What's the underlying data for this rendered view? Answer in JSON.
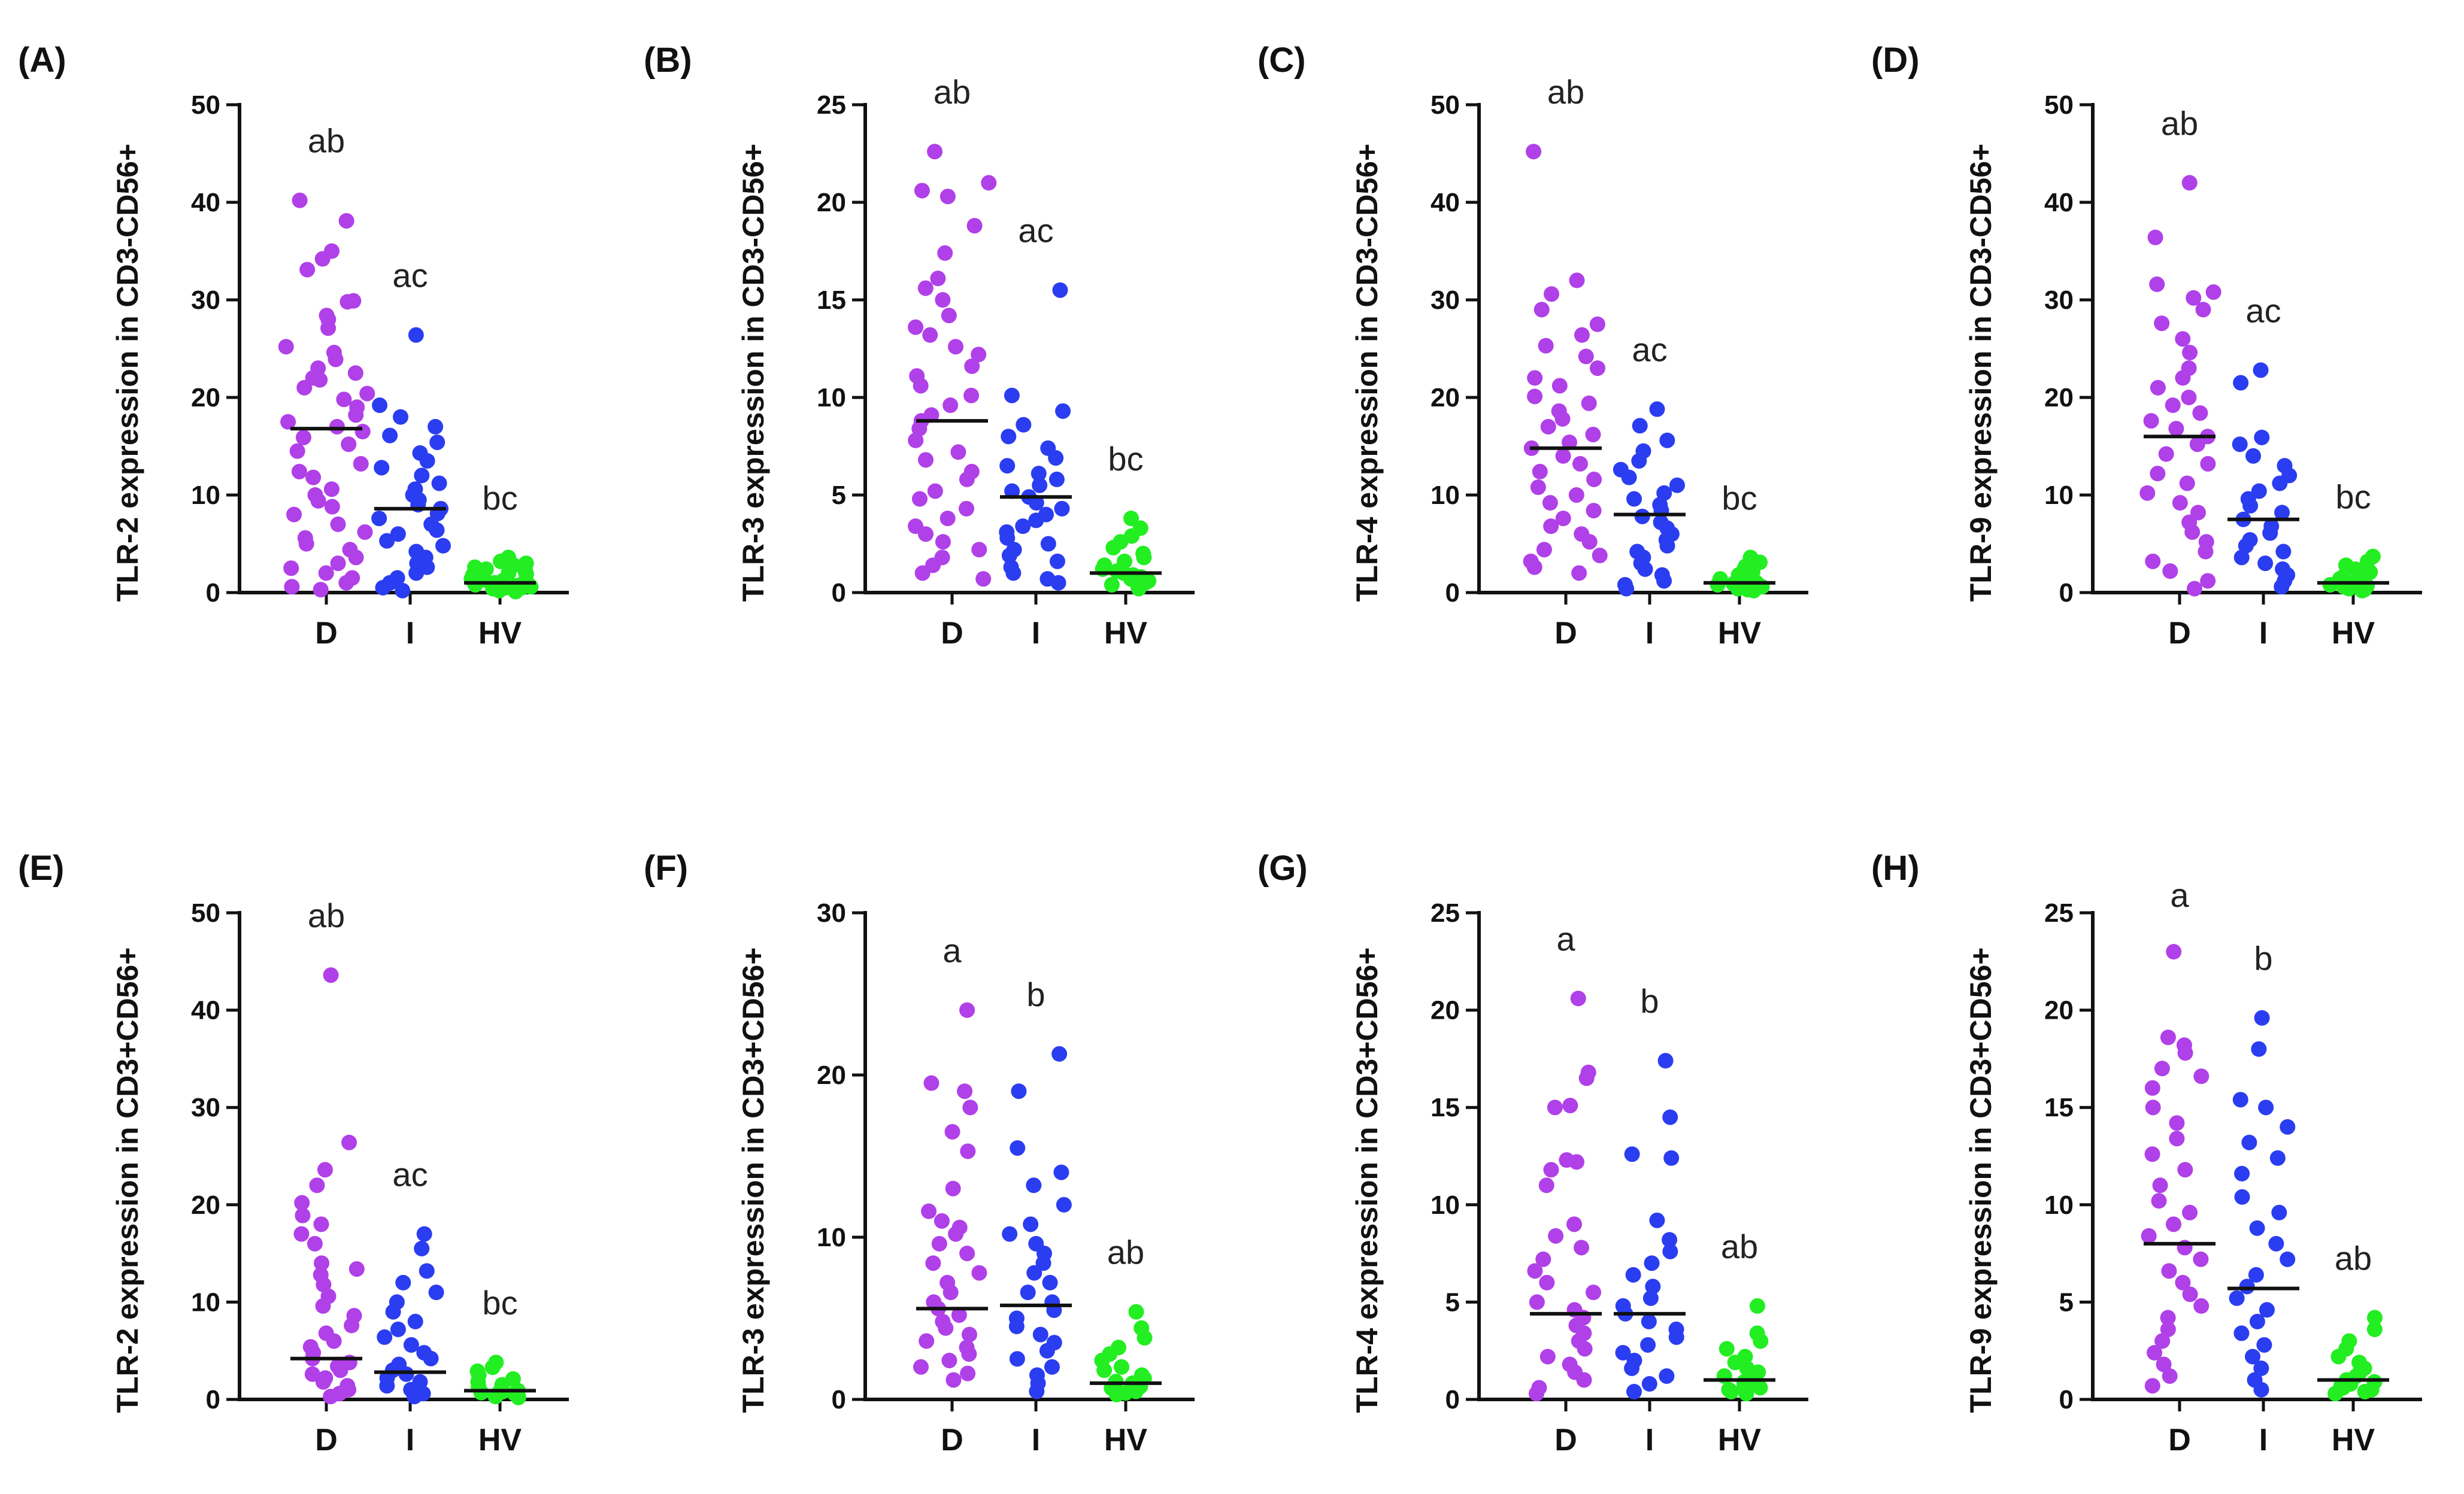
{
  "chart_data": [
    {
      "type": "scatter",
      "panel_label": "(A)",
      "ylabel": "TLR-2 expression in CD3-CD56+",
      "categories": [
        "D",
        "I",
        "HV"
      ],
      "ylim": [
        0,
        50
      ],
      "yticks": [
        0,
        10,
        20,
        30,
        40,
        50
      ],
      "significance": [
        "ab",
        "ac",
        "bc"
      ],
      "medians": [
        16.8,
        8.6,
        1.0
      ],
      "series": [
        {
          "name": "D",
          "color": "#b040e8",
          "values": [
            40.2,
            38.1,
            35.0,
            34.2,
            33.1,
            29.9,
            29.8,
            28.4,
            28.0,
            27.1,
            25.2,
            24.6,
            23.9,
            23.0,
            22.5,
            22.0,
            21.8,
            21.0,
            20.4,
            19.8,
            19.0,
            18.2,
            17.5,
            17.0,
            16.5,
            15.9,
            15.2,
            14.5,
            13.2,
            12.4,
            11.8,
            10.6,
            10.0,
            9.4,
            8.8,
            8.0,
            7.0,
            6.2,
            5.6,
            5.0,
            4.4,
            3.6,
            3.0,
            2.5,
            2.0,
            1.5,
            1.0,
            0.6,
            0.3
          ]
        },
        {
          "name": "I",
          "color": "#2b3df0",
          "values": [
            26.4,
            19.2,
            18.0,
            17.0,
            16.1,
            15.4,
            14.3,
            13.5,
            12.8,
            12.0,
            11.2,
            10.6,
            10.0,
            9.5,
            9.0,
            8.6,
            8.1,
            7.6,
            7.0,
            6.4,
            6.0,
            5.3,
            4.8,
            4.2,
            3.6,
            3.0,
            2.6,
            2.0,
            1.5,
            1.0,
            0.5,
            0.2
          ]
        },
        {
          "name": "HV",
          "color": "#22ee22",
          "values": [
            3.6,
            3.2,
            3.0,
            2.8,
            2.6,
            2.4,
            2.2,
            2.0,
            1.9,
            1.8,
            1.6,
            1.5,
            1.4,
            1.3,
            1.2,
            1.1,
            1.0,
            1.0,
            0.9,
            0.8,
            0.8,
            0.7,
            0.6,
            0.6,
            0.5,
            0.5,
            0.4,
            0.3,
            0.2,
            0.1
          ]
        }
      ]
    },
    {
      "type": "scatter",
      "panel_label": "(B)",
      "ylabel": "TLR-3 expression in CD3-CD56+",
      "categories": [
        "D",
        "I",
        "HV"
      ],
      "ylim": [
        0,
        25
      ],
      "yticks": [
        0,
        5,
        10,
        15,
        20,
        25
      ],
      "significance": [
        "ab",
        "ac",
        "bc"
      ],
      "medians": [
        8.8,
        4.9,
        1.0
      ],
      "series": [
        {
          "name": "D",
          "color": "#b040e8",
          "values": [
            22.6,
            21.0,
            20.6,
            20.3,
            18.8,
            17.4,
            16.1,
            15.6,
            15.0,
            14.2,
            13.6,
            13.2,
            12.6,
            12.2,
            11.6,
            11.1,
            10.6,
            10.1,
            9.6,
            9.1,
            8.8,
            8.4,
            7.8,
            7.2,
            6.8,
            6.2,
            5.8,
            5.2,
            4.8,
            4.3,
            3.8,
            3.4,
            3.0,
            2.6,
            2.2,
            1.8,
            1.4,
            1.0,
            0.7
          ]
        },
        {
          "name": "I",
          "color": "#2b3df0",
          "values": [
            15.5,
            10.1,
            9.3,
            8.6,
            8.0,
            7.4,
            6.9,
            6.5,
            6.1,
            5.8,
            5.5,
            5.2,
            4.9,
            4.6,
            4.3,
            4.0,
            3.7,
            3.4,
            3.1,
            2.8,
            2.5,
            2.2,
            1.9,
            1.6,
            1.3,
            1.0,
            0.7,
            0.5
          ]
        },
        {
          "name": "HV",
          "color": "#22ee22",
          "values": [
            3.8,
            3.3,
            2.9,
            2.6,
            2.3,
            2.0,
            1.8,
            1.6,
            1.4,
            1.2,
            1.1,
            1.0,
            0.9,
            0.8,
            0.7,
            0.6,
            0.5,
            0.4,
            0.3,
            0.2
          ]
        }
      ]
    },
    {
      "type": "scatter",
      "panel_label": "(C)",
      "ylabel": "TLR-4 expression in CD3-CD56+",
      "categories": [
        "D",
        "I",
        "HV"
      ],
      "ylim": [
        0,
        50
      ],
      "yticks": [
        0,
        10,
        20,
        30,
        40,
        50
      ],
      "significance": [
        "ab",
        "ac",
        "bc"
      ],
      "medians": [
        14.8,
        8.0,
        1.0
      ],
      "series": [
        {
          "name": "D",
          "color": "#b040e8",
          "values": [
            45.2,
            32.0,
            30.6,
            29.0,
            27.5,
            26.4,
            25.3,
            24.2,
            23.0,
            22.0,
            21.2,
            20.1,
            19.4,
            18.6,
            17.8,
            17.0,
            16.2,
            15.4,
            14.8,
            14.0,
            13.2,
            12.4,
            11.6,
            10.8,
            10.0,
            9.2,
            8.4,
            7.6,
            6.8,
            6.0,
            5.2,
            4.4,
            3.8,
            3.2,
            2.6,
            2.0
          ]
        },
        {
          "name": "I",
          "color": "#2b3df0",
          "values": [
            18.8,
            17.1,
            15.6,
            14.5,
            13.5,
            12.6,
            11.8,
            11.0,
            10.2,
            9.6,
            9.0,
            8.4,
            7.8,
            7.2,
            6.6,
            6.0,
            5.4,
            4.8,
            4.2,
            3.6,
            3.0,
            2.4,
            1.8,
            1.2,
            0.8,
            0.4
          ]
        },
        {
          "name": "HV",
          "color": "#22ee22",
          "values": [
            3.6,
            3.1,
            2.7,
            2.4,
            2.1,
            1.8,
            1.6,
            1.4,
            1.2,
            1.0,
            0.9,
            0.8,
            0.7,
            0.6,
            0.5,
            0.4,
            0.3,
            0.2
          ]
        }
      ]
    },
    {
      "type": "scatter",
      "panel_label": "(D)",
      "ylabel": "TLR-9 expression in CD3-CD56+",
      "categories": [
        "D",
        "I",
        "HV"
      ],
      "ylim": [
        0,
        50
      ],
      "yticks": [
        0,
        10,
        20,
        30,
        40,
        50
      ],
      "significance": [
        "ab",
        "ac",
        "bc"
      ],
      "medians": [
        16.0,
        7.5,
        1.0
      ],
      "series": [
        {
          "name": "D",
          "color": "#b040e8",
          "values": [
            42.0,
            36.4,
            31.6,
            30.8,
            30.2,
            29.0,
            27.6,
            26.0,
            24.6,
            23.0,
            22.0,
            21.0,
            20.0,
            19.2,
            18.4,
            17.6,
            16.8,
            16.0,
            15.2,
            14.2,
            13.2,
            12.2,
            11.2,
            10.2,
            9.2,
            8.2,
            7.2,
            6.2,
            5.2,
            4.2,
            3.2,
            2.2,
            1.2,
            0.4
          ]
        },
        {
          "name": "I",
          "color": "#2b3df0",
          "values": [
            22.8,
            21.5,
            15.9,
            15.2,
            14.0,
            13.0,
            12.0,
            11.2,
            10.4,
            9.6,
            8.9,
            8.2,
            7.5,
            6.8,
            6.1,
            5.4,
            4.8,
            4.2,
            3.6,
            3.0,
            2.4,
            1.8,
            1.2,
            0.6
          ]
        },
        {
          "name": "HV",
          "color": "#22ee22",
          "values": [
            3.7,
            3.2,
            2.8,
            2.4,
            2.1,
            1.8,
            1.6,
            1.4,
            1.2,
            1.0,
            0.9,
            0.8,
            0.7,
            0.6,
            0.5,
            0.4,
            0.3,
            0.2
          ]
        }
      ]
    },
    {
      "type": "scatter",
      "panel_label": "(E)",
      "ylabel": "TLR-2 expression in CD3+CD56+",
      "categories": [
        "D",
        "I",
        "HV"
      ],
      "ylim": [
        0,
        50
      ],
      "yticks": [
        0,
        10,
        20,
        30,
        40,
        50
      ],
      "significance": [
        "ab",
        "ac",
        "bc"
      ],
      "medians": [
        4.2,
        2.8,
        0.9
      ],
      "series": [
        {
          "name": "D",
          "color": "#b040e8",
          "values": [
            43.6,
            26.4,
            23.6,
            22.0,
            20.2,
            18.9,
            18.0,
            17.0,
            16.0,
            14.0,
            13.4,
            12.8,
            11.8,
            10.6,
            9.6,
            8.6,
            7.6,
            6.8,
            6.0,
            5.4,
            4.8,
            4.2,
            3.8,
            3.4,
            3.0,
            2.6,
            2.2,
            1.8,
            1.4,
            1.0,
            0.6,
            0.3
          ]
        },
        {
          "name": "I",
          "color": "#2b3df0",
          "values": [
            17.0,
            15.5,
            13.2,
            12.0,
            11.0,
            10.0,
            9.0,
            8.0,
            7.2,
            6.4,
            5.6,
            4.8,
            4.2,
            3.6,
            3.0,
            2.6,
            2.2,
            1.8,
            1.4,
            1.0,
            0.6,
            0.3
          ]
        },
        {
          "name": "HV",
          "color": "#22ee22",
          "values": [
            3.8,
            3.3,
            2.9,
            2.5,
            2.1,
            1.8,
            1.5,
            1.3,
            1.1,
            0.9,
            0.8,
            0.7,
            0.6,
            0.5,
            0.4,
            0.3,
            0.2
          ]
        }
      ]
    },
    {
      "type": "scatter",
      "panel_label": "(F)",
      "ylabel": "TLR-3 expression in CD3+CD56+",
      "categories": [
        "D",
        "I",
        "HV"
      ],
      "ylim": [
        0,
        30
      ],
      "yticks": [
        0,
        10,
        20,
        30
      ],
      "significance": [
        "a",
        "b",
        "ab"
      ],
      "medians": [
        5.6,
        5.8,
        1.0
      ],
      "series": [
        {
          "name": "D",
          "color": "#b040e8",
          "values": [
            24.0,
            19.5,
            19.0,
            18.0,
            16.5,
            15.3,
            13.0,
            11.6,
            11.0,
            10.6,
            10.2,
            9.6,
            9.0,
            8.4,
            7.8,
            7.2,
            6.6,
            6.0,
            5.6,
            5.2,
            4.8,
            4.4,
            4.0,
            3.6,
            3.2,
            2.8,
            2.4,
            2.0,
            1.6,
            1.2
          ]
        },
        {
          "name": "I",
          "color": "#2b3df0",
          "values": [
            21.3,
            19.0,
            15.5,
            14.0,
            13.2,
            12.0,
            10.8,
            10.2,
            9.6,
            9.0,
            8.4,
            7.8,
            7.2,
            6.6,
            6.0,
            5.5,
            5.0,
            4.5,
            4.0,
            3.5,
            3.0,
            2.5,
            2.0,
            1.5,
            1.0,
            0.5
          ]
        },
        {
          "name": "HV",
          "color": "#22ee22",
          "values": [
            5.4,
            4.4,
            3.8,
            3.2,
            2.8,
            2.4,
            2.0,
            1.8,
            1.5,
            1.3,
            1.1,
            1.0,
            0.9,
            0.8,
            0.7,
            0.5,
            0.4,
            0.3
          ]
        }
      ]
    },
    {
      "type": "scatter",
      "panel_label": "(G)",
      "ylabel": "TLR-4 expression in CD3+CD56+",
      "categories": [
        "D",
        "I",
        "HV"
      ],
      "ylim": [
        0,
        25
      ],
      "yticks": [
        0,
        5,
        10,
        15,
        20,
        25
      ],
      "significance": [
        "a",
        "b",
        "ab"
      ],
      "medians": [
        4.4,
        4.4,
        1.0
      ],
      "series": [
        {
          "name": "D",
          "color": "#b040e8",
          "values": [
            20.6,
            16.8,
            16.5,
            15.1,
            15.0,
            12.3,
            12.2,
            11.8,
            11.0,
            9.0,
            8.4,
            7.8,
            7.2,
            6.6,
            6.0,
            5.5,
            5.0,
            4.6,
            4.2,
            3.8,
            3.4,
            3.0,
            2.6,
            2.2,
            1.8,
            1.4,
            1.0,
            0.6,
            0.3
          ]
        },
        {
          "name": "I",
          "color": "#2b3df0",
          "values": [
            17.4,
            14.5,
            12.6,
            12.4,
            9.2,
            8.2,
            7.6,
            7.0,
            6.4,
            5.8,
            5.2,
            4.8,
            4.4,
            4.0,
            3.6,
            3.2,
            2.8,
            2.4,
            2.0,
            1.6,
            1.2,
            0.8,
            0.4
          ]
        },
        {
          "name": "HV",
          "color": "#22ee22",
          "values": [
            4.8,
            3.4,
            3.0,
            2.6,
            2.2,
            1.9,
            1.6,
            1.4,
            1.2,
            1.0,
            0.9,
            0.8,
            0.7,
            0.6,
            0.5,
            0.4,
            0.3
          ]
        }
      ]
    },
    {
      "type": "scatter",
      "panel_label": "(H)",
      "ylabel": "TLR-9 expression in CD3+CD56+",
      "categories": [
        "D",
        "I",
        "HV"
      ],
      "ylim": [
        0,
        25
      ],
      "yticks": [
        0,
        5,
        10,
        15,
        20,
        25
      ],
      "significance": [
        "a",
        "b",
        "ab"
      ],
      "medians": [
        8.0,
        5.7,
        1.0
      ],
      "series": [
        {
          "name": "D",
          "color": "#b040e8",
          "values": [
            23.0,
            18.6,
            18.2,
            17.8,
            17.0,
            16.6,
            16.0,
            15.0,
            14.2,
            13.4,
            12.6,
            11.8,
            11.0,
            10.2,
            9.6,
            9.0,
            8.4,
            7.8,
            7.2,
            6.6,
            6.0,
            5.4,
            4.8,
            4.2,
            3.6,
            3.0,
            2.4,
            1.8,
            1.2,
            0.7
          ]
        },
        {
          "name": "I",
          "color": "#2b3df0",
          "values": [
            19.6,
            18.0,
            15.4,
            15.0,
            14.0,
            13.2,
            12.4,
            11.6,
            10.4,
            9.6,
            8.8,
            8.0,
            7.2,
            6.4,
            5.8,
            5.2,
            4.6,
            4.0,
            3.4,
            2.8,
            2.2,
            1.6,
            1.0,
            0.5
          ]
        },
        {
          "name": "HV",
          "color": "#22ee22",
          "values": [
            4.2,
            3.6,
            3.0,
            2.6,
            2.2,
            1.9,
            1.6,
            1.4,
            1.2,
            1.0,
            0.9,
            0.8,
            0.7,
            0.6,
            0.5,
            0.4,
            0.3
          ]
        }
      ]
    }
  ]
}
